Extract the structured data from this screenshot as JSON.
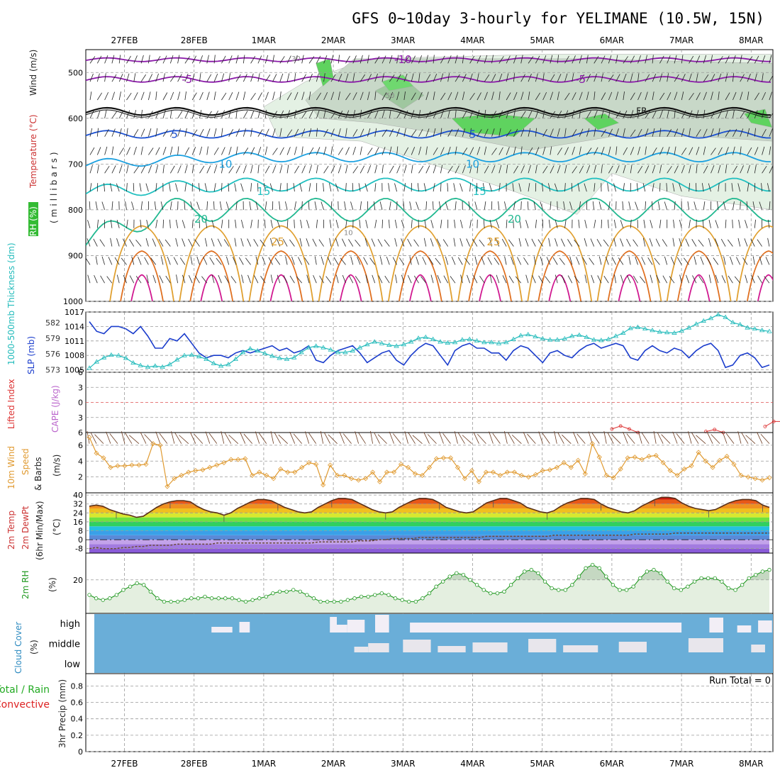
{
  "title": "GFS 0~10day 3-hourly for YELIMANE (10.5W, 15N)",
  "dates": [
    "27FEB",
    "28FEB",
    "1MAR",
    "2MAR",
    "3MAR",
    "4MAR",
    "5MAR",
    "6MAR",
    "7MAR",
    "8MAR"
  ],
  "run_total": "Run Total = 0",
  "labels": {
    "p1_rh": "RH (%)",
    "p1_temp": "Temperature (°C)",
    "p1_wind": "Wind (m/s)",
    "p1_mb": "(millibars)",
    "p2_thick": "1000-500mb Thickness (dm)",
    "p2_slp": "SLP (mb)",
    "p3_li": "Lifted Index",
    "p3_cape": "CAPE (J/kg)",
    "p4_a": "10m Wind",
    "p4_b": "Speed",
    "p4_c": "& Barbs",
    "p4_d": "(m/s)",
    "p5_a": "2m Temp",
    "p5_b": "2m DewPt",
    "p5_c": "(6hr Min/Max)",
    "p5_d": "(°C)",
    "p6_a": "2m RH",
    "p6_b": "(%)",
    "p7_a": "Cloud Cover",
    "p7_b": "(%)",
    "p8_a": "Total / Rain",
    "p8_b": "Convective",
    "p8_c": "3hr Precip (mm)"
  },
  "colors": {
    "temp": "#cc3333",
    "wind": "#222222",
    "rh_green": "#33bb33",
    "thick": "#22bbbb",
    "slp": "#1a3ccc",
    "li": "#dd3333",
    "cape": "#bb66cc",
    "wind10": "#e09a30",
    "rh2": "#229922",
    "cloud": "#2e8bc0",
    "precip_total": "#22aa22",
    "precip_conv": "#dd2222"
  },
  "chart_data": [
    {
      "type": "contour",
      "title": "Temperature, Wind, RH cross-section",
      "ylabel": "millibars",
      "y_ticks": [
        500,
        600,
        700,
        800,
        900,
        1000
      ],
      "ylim": [
        1000,
        450
      ],
      "temp_labels": [
        {
          "value": "-10",
          "day": 4.0
        },
        {
          "value": "-5",
          "day": 0.9
        },
        {
          "value": "-5",
          "day": 6.55
        },
        {
          "value": "5",
          "day": 0.72
        },
        {
          "value": "5",
          "day": 5.0
        },
        {
          "value": "10",
          "day": 1.45
        },
        {
          "value": "10",
          "day": 5.0
        },
        {
          "value": "15",
          "day": 2.0
        },
        {
          "value": "15",
          "day": 5.1
        },
        {
          "value": "20",
          "day": 1.1
        },
        {
          "value": "20",
          "day": 5.6
        },
        {
          "value": "25",
          "day": 2.2
        },
        {
          "value": "25",
          "day": 5.3
        }
      ],
      "freezing_label": "FR",
      "rh_labels": [
        "30",
        "50",
        "10"
      ]
    },
    {
      "type": "line",
      "title": "SLP and 1000-500mb Thickness",
      "y_left_ticks": [
        573,
        576,
        579,
        582
      ],
      "y_right_ticks": [
        1005,
        1008,
        1011,
        1014,
        1017
      ],
      "slp_ylim": [
        1004.5,
        1017
      ],
      "slp": [
        1015,
        1013,
        1012.5,
        1014,
        1014,
        1013.5,
        1012.5,
        1014,
        1012,
        1009.5,
        1009.5,
        1011.5,
        1011,
        1012.5,
        1010.5,
        1008.5,
        1007.5,
        1008,
        1008,
        1007.5,
        1008.5,
        1009,
        1008.5,
        1009,
        1009.5,
        1010,
        1009,
        1009.5,
        1008.5,
        1009,
        1010,
        1007,
        1006.5,
        1008,
        1009,
        1009.5,
        1010,
        1008.5,
        1006.5,
        1007.5,
        1008.5,
        1009,
        1007,
        1006,
        1008,
        1009.5,
        1010.5,
        1010,
        1008,
        1006,
        1009,
        1010,
        1010.5,
        1009.5,
        1009.5,
        1008.5,
        1008.5,
        1007,
        1009,
        1010,
        1009.5,
        1008,
        1006.5,
        1008.5,
        1009,
        1008,
        1007.5,
        1009,
        1010,
        1010.5,
        1009.5,
        1010,
        1010.5,
        1010,
        1007.5,
        1007,
        1009,
        1010,
        1009,
        1008.5,
        1009.5,
        1009,
        1007.5,
        1009,
        1010,
        1010.5,
        1009,
        1005.5,
        1006,
        1008,
        1008.5,
        1007.5,
        1005.5,
        1006
      ],
      "thickness": [
        573.3,
        574.5,
        575.3,
        575.8,
        575.7,
        575.2,
        574.3,
        573.8,
        573.5,
        573.7,
        573.5,
        574,
        574.9,
        575.7,
        575.8,
        575.5,
        575,
        574.2,
        573.7,
        574,
        575,
        576.3,
        577,
        576.6,
        576.1,
        575.6,
        575.2,
        575,
        575.3,
        576.3,
        577.2,
        577.5,
        577.2,
        576.8,
        576.3,
        576.3,
        576.6,
        577.2,
        577.8,
        578.3,
        578,
        577.7,
        577.5,
        577.8,
        578.3,
        579,
        579.2,
        578.8,
        578.3,
        578.1,
        578.2,
        578.7,
        578.8,
        578.5,
        578.2,
        578.2,
        578,
        578.2,
        578.8,
        579.5,
        579.7,
        579.3,
        578.9,
        578.7,
        578.7,
        578.9,
        579.4,
        579.6,
        579.2,
        578.7,
        578.6,
        578.8,
        579.4,
        580,
        580.9,
        581.1,
        580.8,
        580.5,
        580.2,
        580.1,
        580,
        580.4,
        581,
        581.7,
        582.3,
        582.8,
        583.5,
        583,
        582,
        581.6,
        581,
        580.8,
        580.5,
        580.3
      ]
    },
    {
      "type": "line",
      "title": "Lifted Index / CAPE",
      "y_ticks": [
        -6,
        -3,
        0,
        3,
        6
      ],
      "ylim": [
        -6,
        6
      ],
      "li_segments": [
        {
          "start": 7.0,
          "values": [
            5.3,
            4.7,
            5.3,
            6.0
          ]
        },
        {
          "start": 8.35,
          "values": [
            5.8,
            5.4,
            6.0
          ]
        },
        {
          "start": 9.2,
          "values": [
            4.8,
            3.8,
            3.8,
            4.3,
            5.0,
            6.0
          ]
        }
      ]
    },
    {
      "type": "line",
      "title": "10m Wind Speed & Barbs",
      "y_ticks": [
        2,
        4,
        6
      ],
      "ylim": [
        0,
        7.6
      ],
      "speed": [
        7,
        5,
        4.4,
        3.2,
        3.4,
        3.4,
        3.5,
        3.5,
        3.6,
        6.2,
        6.0,
        0.8,
        1.8,
        2.2,
        2.6,
        2.8,
        2.9,
        3.2,
        3.5,
        3.8,
        4.2,
        4.2,
        4.3,
        2.2,
        2.6,
        2.2,
        1.8,
        3.0,
        2.6,
        2.6,
        3.2,
        3.8,
        3.6,
        1.0,
        3.5,
        2.2,
        2.2,
        1.8,
        1.6,
        1.8,
        2.6,
        1.4,
        2.6,
        2.6,
        3.6,
        3.2,
        2.4,
        2.2,
        3.2,
        4.3,
        4.4,
        4.4,
        3.2,
        1.8,
        2.8,
        1.4,
        2.6,
        2.6,
        2.2,
        2.6,
        2.6,
        2.2,
        2.0,
        2.3,
        2.8,
        2.9,
        3.2,
        3.8,
        3.2,
        4.1,
        2.4,
        6.2,
        4.5,
        2.2,
        1.9,
        3.0,
        4.4,
        4.5,
        4.2,
        4.6,
        4.7,
        3.8,
        2.8,
        2.2,
        3.0,
        3.4,
        5.1,
        4.0,
        3.2,
        4.1,
        4.6,
        3.6,
        2.2,
        2.0,
        1.8,
        1.6,
        1.9
      ]
    },
    {
      "type": "area",
      "title": "2m Temperature and DewPoint",
      "y_ticks": [
        -8,
        0,
        8,
        16,
        24,
        32,
        40
      ],
      "ylim": [
        -12,
        42
      ],
      "temp": [
        30,
        31,
        30,
        27,
        25,
        23,
        22,
        20,
        21,
        25,
        29,
        32,
        34,
        35,
        35,
        34,
        30,
        27,
        25,
        24,
        22,
        24,
        28,
        31,
        34,
        36,
        36,
        35,
        32,
        29,
        27,
        25,
        24,
        25,
        29,
        32,
        35,
        37,
        37,
        36,
        33,
        30,
        27,
        25,
        24,
        25,
        29,
        32,
        35,
        37,
        37,
        36,
        33,
        29,
        27,
        25,
        24,
        25,
        29,
        33,
        35,
        37,
        37,
        35,
        33,
        29,
        27,
        25,
        24,
        26,
        30,
        33,
        35,
        37,
        37,
        36,
        32,
        29,
        27,
        25,
        24,
        26,
        30,
        33,
        36,
        38,
        38,
        37,
        33,
        30,
        28,
        27,
        26,
        27,
        30,
        33,
        35,
        36,
        36,
        35,
        31,
        29
      ],
      "dewpoint": [
        -8,
        -7,
        -8,
        -8,
        -8,
        -7,
        -7,
        -6,
        -6,
        -5,
        -5,
        -5,
        -5,
        -4,
        -4,
        -4,
        -4,
        -4,
        -4,
        -3,
        -3,
        -3,
        -3,
        -3,
        -3,
        -3,
        -3,
        -3,
        -3,
        -3,
        -3,
        -3,
        -3,
        -3,
        -2,
        -2,
        -2,
        -2,
        -2,
        -2,
        -1,
        -1,
        -1,
        0,
        0,
        1,
        1,
        1,
        1,
        2,
        2,
        2,
        2,
        2,
        2,
        2,
        2,
        2,
        2,
        3,
        3,
        3,
        3,
        3,
        3,
        3,
        3,
        3,
        3,
        4,
        4,
        4,
        4,
        4,
        4,
        4,
        4,
        4,
        4,
        4,
        4,
        5,
        5,
        5,
        5,
        5,
        5,
        6,
        6,
        6,
        6,
        6,
        6,
        6,
        6,
        6,
        6,
        6,
        6,
        6,
        6,
        6
      ]
    },
    {
      "type": "area",
      "title": "2m RH",
      "y_ticks": [
        20
      ],
      "ylim": [
        0,
        36
      ],
      "rh": [
        11,
        9,
        8,
        9,
        11,
        14,
        16,
        18,
        17,
        13,
        9,
        7,
        7,
        7,
        8,
        9,
        9,
        10,
        9,
        9,
        9,
        9,
        8,
        7,
        8,
        9,
        10,
        12,
        13,
        13,
        14,
        13,
        11,
        9,
        7,
        7,
        7,
        7,
        8,
        9,
        10,
        10,
        11,
        12,
        11,
        9,
        8,
        7,
        7,
        9,
        12,
        16,
        19,
        22,
        24,
        23,
        20,
        17,
        14,
        12,
        12,
        13,
        17,
        21,
        25,
        26,
        24,
        19,
        15,
        14,
        14,
        17,
        22,
        27,
        29,
        27,
        22,
        17,
        14,
        14,
        16,
        21,
        25,
        26,
        24,
        19,
        15,
        14,
        16,
        19,
        21,
        21,
        21,
        19,
        15,
        14,
        17,
        21,
        23,
        25,
        26
      ]
    },
    {
      "type": "heatmap",
      "title": "Cloud Cover",
      "rows": [
        "high",
        "middle",
        "low"
      ],
      "high_segments": [
        [
          1.25,
          1.55
        ],
        [
          1.65,
          1.8
        ],
        [
          2.95,
          3.05
        ],
        [
          3.05,
          3.2
        ],
        [
          3.2,
          3.45
        ],
        [
          3.6,
          3.8
        ],
        [
          4.1,
          8.0
        ],
        [
          8.4,
          8.6
        ],
        [
          8.8,
          9.0
        ],
        [
          9.1,
          9.3
        ],
        [
          9.6,
          9.8
        ]
      ],
      "mid_segments": [
        [
          3.3,
          3.5
        ],
        [
          3.5,
          3.8
        ],
        [
          4.0,
          4.4
        ],
        [
          4.5,
          4.9
        ],
        [
          5.0,
          5.5
        ],
        [
          5.8,
          6.2
        ],
        [
          6.3,
          6.8
        ],
        [
          7.1,
          7.5
        ],
        [
          8.1,
          8.6
        ],
        [
          9.0,
          9.2
        ],
        [
          9.5,
          9.7
        ]
      ],
      "low_segments": []
    },
    {
      "type": "bar",
      "title": "3hr Precip",
      "y_ticks": [
        0,
        0.2,
        0.4,
        0.6,
        0.8
      ],
      "ylim": [
        0,
        0.95
      ],
      "values": []
    }
  ]
}
